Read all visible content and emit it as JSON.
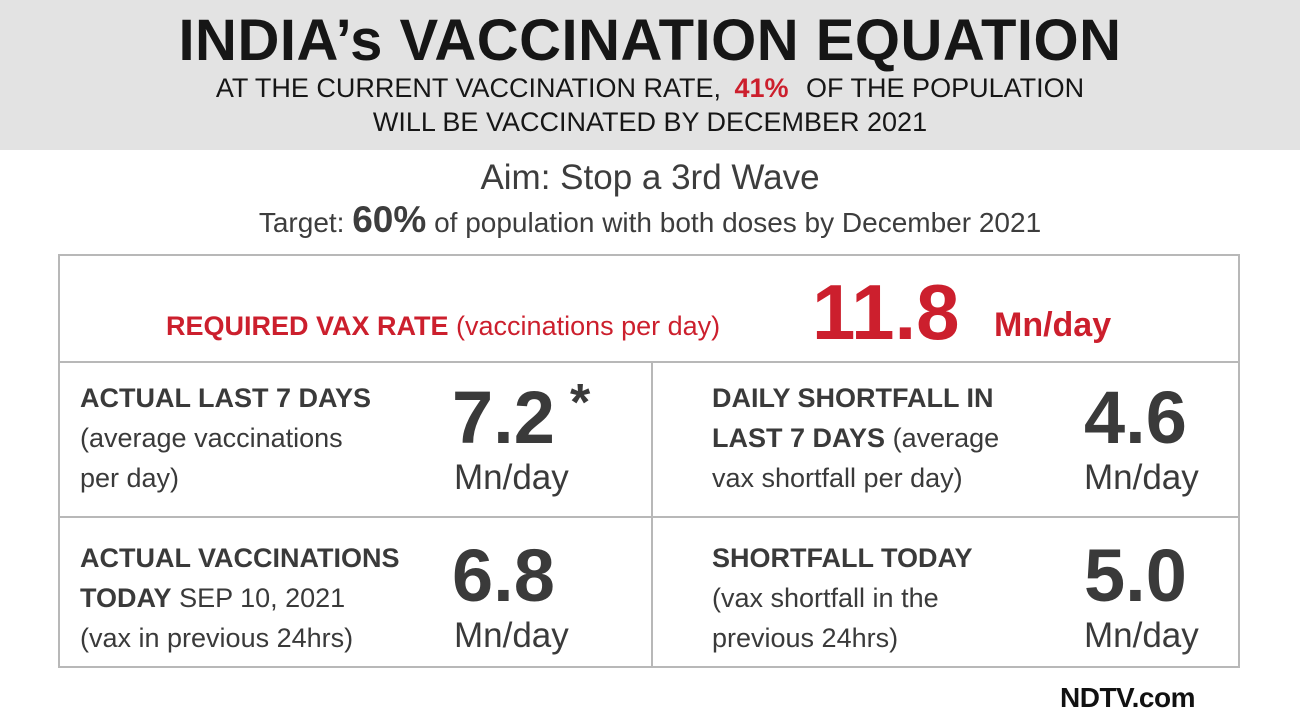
{
  "header": {
    "title": "INDIA’s VACCINATION EQUATION",
    "subtitle_part1": "AT THE CURRENT VACCINATION RATE,",
    "subtitle_percent": "41%",
    "subtitle_part2": "OF THE POPULATION",
    "subtitle_line2": "WILL BE VACCINATED BY DECEMBER 2021"
  },
  "aim": "Aim: Stop a 3rd Wave",
  "target": {
    "prefix": "Target:",
    "percent": "60%",
    "suffix": "of population with both doses by December 2021"
  },
  "required": {
    "label": "REQUIRED VAX RATE",
    "note": "(vaccinations per day)",
    "value": "11.8",
    "unit": "Mn/day"
  },
  "cells": {
    "actual_7days": {
      "label": "ACTUAL LAST 7 DAYS",
      "note_line1": "(average vaccinations",
      "note_line2": "per day)",
      "value": "7.2",
      "asterisk": "*",
      "unit": "Mn/day"
    },
    "shortfall_7days": {
      "label_line1": "DAILY SHORTFALL IN",
      "label_line2": "LAST 7 DAYS",
      "note_inline": "(average",
      "note_line3": "vax shortfall per day)",
      "value": "4.6",
      "unit": "Mn/day"
    },
    "actual_today": {
      "label_line1": "ACTUAL VACCINATIONS",
      "label_line2": "TODAY",
      "date": "SEP 10, 2021",
      "note": "(vax in previous 24hrs)",
      "value": "6.8",
      "unit": "Mn/day"
    },
    "shortfall_today": {
      "label": "SHORTFALL TODAY",
      "note_line1": "(vax shortfall in the",
      "note_line2": "previous 24hrs)",
      "value": "5.0",
      "unit": "Mn/day"
    }
  },
  "logo": "NDTV.com",
  "colors": {
    "accent": "#cc1f2d",
    "header_bg": "#e3e3e3",
    "text": "#3a3a3a"
  }
}
